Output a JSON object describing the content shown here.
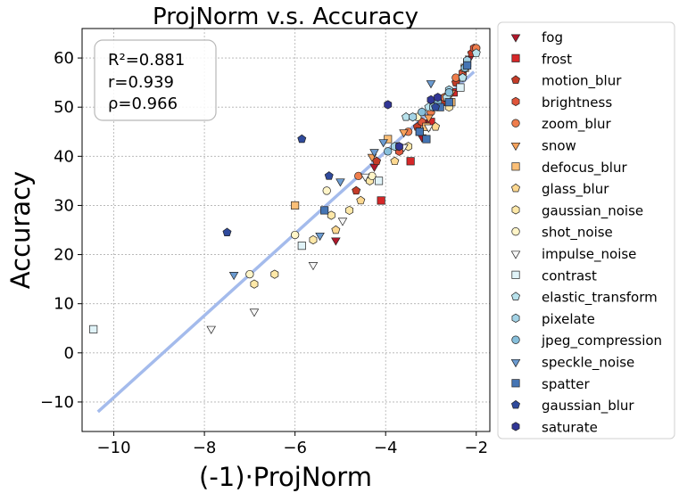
{
  "chart_data": {
    "type": "scatter",
    "title": "ProjNorm  v.s.  Accuracy",
    "xlabel": "(-1)·ProjNorm",
    "ylabel": "Accuracy",
    "xlim": [
      -10.7,
      -1.7
    ],
    "ylim": [
      -16,
      66
    ],
    "xticks": [
      -10,
      -8,
      -6,
      -4,
      -2
    ],
    "xtick_labels": [
      "−10",
      "−8",
      "−6",
      "−4",
      "−2"
    ],
    "yticks": [
      -10,
      0,
      10,
      20,
      30,
      40,
      50,
      60
    ],
    "ytick_labels": [
      "−10",
      "0",
      "10",
      "20",
      "30",
      "40",
      "50",
      "60"
    ],
    "grid": true,
    "legend_position": "outside-right",
    "stats": [
      "R²=0.881",
      "r=0.939",
      "ρ=0.966"
    ],
    "fit_line": {
      "x": [
        -10.35,
        -2.05
      ],
      "y": [
        -12.0,
        57.2
      ],
      "color": "#a4bbec"
    },
    "series": [
      {
        "name": "fog",
        "marker": "triangle-down",
        "color": "#b2182b",
        "x": [
          -5.1,
          -4.25,
          -3.2,
          -3.05,
          -2.15
        ],
        "y": [
          23,
          38,
          44,
          47,
          60
        ]
      },
      {
        "name": "frost",
        "marker": "square",
        "color": "#d62728",
        "x": [
          -4.1,
          -3.45,
          -3.0,
          -2.5,
          -2.2
        ],
        "y": [
          31,
          39,
          47,
          53,
          59
        ]
      },
      {
        "name": "motion_blur",
        "marker": "pentagon",
        "color": "#c43c28",
        "x": [
          -4.65,
          -4.2,
          -3.3,
          -2.75,
          -2.45,
          -2.1
        ],
        "y": [
          33,
          39,
          46,
          51,
          55,
          61
        ]
      },
      {
        "name": "brightness",
        "marker": "hexagon",
        "color": "#e0553a",
        "x": [
          -3.7,
          -3.2,
          -2.7,
          -2.3,
          -2.05
        ],
        "y": [
          41,
          47,
          52,
          57,
          62
        ]
      },
      {
        "name": "zoom_blur",
        "marker": "circle",
        "color": "#ef7d4c",
        "x": [
          -4.6,
          -3.5,
          -3.0,
          -2.7,
          -2.45,
          -2.0
        ],
        "y": [
          36,
          45,
          49,
          52,
          56,
          62
        ]
      },
      {
        "name": "snow",
        "marker": "triangle-down",
        "color": "#f8a35c",
        "x": [
          -4.3,
          -3.6,
          -3.05,
          -2.55,
          -2.25
        ],
        "y": [
          40,
          45,
          48,
          53,
          58
        ]
      },
      {
        "name": "defocus_blur",
        "marker": "square",
        "color": "#fbbf77",
        "x": [
          -6.0,
          -3.95,
          -3.1,
          -2.55,
          -2.25
        ],
        "y": [
          30,
          43.5,
          46,
          51,
          58
        ]
      },
      {
        "name": "glass_blur",
        "marker": "pentagon",
        "color": "#fdd890",
        "x": [
          -5.1,
          -4.55,
          -3.8,
          -2.9
        ],
        "y": [
          25,
          31,
          39,
          46
        ]
      },
      {
        "name": "gaussian_noise",
        "marker": "hexagon",
        "color": "#fee8a8",
        "x": [
          -6.9,
          -6.45,
          -5.6,
          -5.2,
          -4.8,
          -4.35,
          -3.5,
          -2.6
        ],
        "y": [
          14,
          16,
          23,
          28,
          29,
          35,
          42,
          50
        ]
      },
      {
        "name": "shot_noise",
        "marker": "circle",
        "color": "#fff5c8",
        "x": [
          -7.0,
          -6.0,
          -5.3,
          -4.3,
          -3.75,
          -3.3,
          -2.3
        ],
        "y": [
          16,
          24,
          33,
          36,
          42,
          48,
          56
        ]
      },
      {
        "name": "impulse_noise",
        "marker": "triangle-down",
        "color": "#f7f7f7",
        "x": [
          -7.85,
          -6.9,
          -5.6,
          -4.95,
          -4.45,
          -3.6,
          -3.05
        ],
        "y": [
          5,
          8.5,
          18,
          27,
          36,
          42,
          46
        ]
      },
      {
        "name": "contrast",
        "marker": "square",
        "color": "#e0f3f8",
        "x": [
          -10.45,
          -5.85,
          -4.15,
          -3.25,
          -2.35
        ],
        "y": [
          4.8,
          21.8,
          35,
          45,
          54
        ]
      },
      {
        "name": "elastic_transform",
        "marker": "pentagon",
        "color": "#b8e2ec",
        "x": [
          -3.55,
          -3.05,
          -2.65,
          -2.3,
          -2.0
        ],
        "y": [
          48,
          50,
          52,
          56,
          61
        ]
      },
      {
        "name": "pixelate",
        "marker": "hexagon",
        "color": "#a3d3e6",
        "x": [
          -3.8,
          -3.4,
          -2.95,
          -2.6,
          -2.2
        ],
        "y": [
          42,
          48,
          50,
          53.5,
          59.5
        ]
      },
      {
        "name": "jpeg_compression",
        "marker": "circle",
        "color": "#86bfdb",
        "x": [
          -3.95,
          -3.2,
          -2.85,
          -2.6,
          -2.25
        ],
        "y": [
          41,
          49,
          51,
          53,
          58
        ]
      },
      {
        "name": "speckle_noise",
        "marker": "triangle-down",
        "color": "#6b9bd1",
        "x": [
          -7.35,
          -5.45,
          -5.0,
          -4.25,
          -4.05,
          -3.0
        ],
        "y": [
          16,
          24,
          35,
          41,
          43,
          55
        ]
      },
      {
        "name": "spatter",
        "marker": "square",
        "color": "#4575b4",
        "x": [
          -5.35,
          -3.25,
          -3.1,
          -2.8,
          -2.6,
          -2.2
        ],
        "y": [
          29,
          45,
          43.5,
          50,
          51,
          58.5
        ]
      },
      {
        "name": "gaussian_blur",
        "marker": "pentagon",
        "color": "#2f4a9c",
        "x": [
          -7.5,
          -5.85,
          -5.25,
          -2.9
        ],
        "y": [
          24.5,
          43.5,
          36,
          50
        ]
      },
      {
        "name": "saturate",
        "marker": "hexagon",
        "color": "#313695",
        "x": [
          -3.95,
          -3.7,
          -3.0,
          -2.85
        ],
        "y": [
          50.5,
          42,
          51.5,
          52
        ]
      }
    ]
  }
}
